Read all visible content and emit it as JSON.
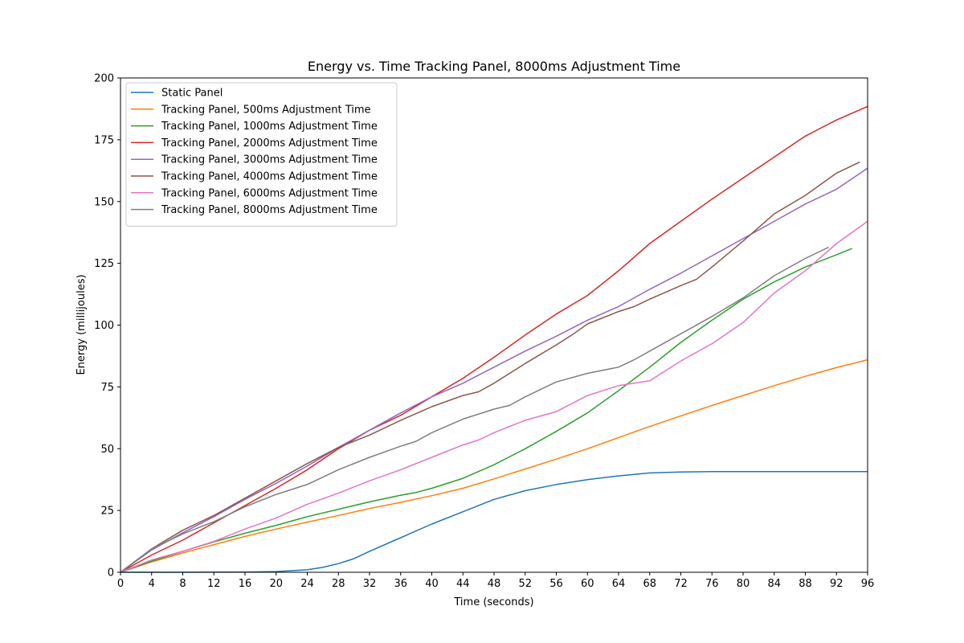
{
  "chart_data": {
    "type": "line",
    "title": "Energy vs. Time Tracking Panel, 8000ms Adjustment Time",
    "xlabel": "Time (seconds)",
    "ylabel": "Energy (millijoules)",
    "xlim": [
      0,
      96
    ],
    "ylim": [
      0,
      200
    ],
    "xticks": [
      "0",
      "4",
      "8",
      "12",
      "16",
      "20",
      "24",
      "28",
      "32",
      "36",
      "40",
      "44",
      "48",
      "52",
      "56",
      "60",
      "64",
      "68",
      "72",
      "76",
      "80",
      "84",
      "88",
      "92",
      "96"
    ],
    "yticks": [
      "0",
      "25",
      "50",
      "75",
      "100",
      "125",
      "150",
      "175",
      "200"
    ],
    "grid": false,
    "legend_position": "upper-left",
    "series": [
      {
        "name": "Static Panel",
        "color": "#1f77b4",
        "x": [
          0,
          8,
          16,
          20,
          24,
          26,
          28,
          30,
          32,
          36,
          40,
          44,
          48,
          52,
          56,
          60,
          64,
          68,
          72,
          76,
          80,
          88,
          96
        ],
        "y": [
          0,
          0,
          0.1,
          0.3,
          1,
          2,
          3.5,
          5.5,
          8.5,
          14,
          19.5,
          24.5,
          29.5,
          33,
          35.5,
          37.5,
          39,
          40.2,
          40.6,
          40.7,
          40.7,
          40.7,
          40.7
        ]
      },
      {
        "name": "Tracking Panel, 500ms Adjustment Time",
        "color": "#ff7f0e",
        "x": [
          0,
          4,
          8,
          12,
          16,
          20,
          24,
          28,
          32,
          36,
          40,
          44,
          48,
          52,
          56,
          60,
          64,
          68,
          72,
          76,
          80,
          84,
          88,
          92,
          96
        ],
        "y": [
          0,
          4.2,
          7.8,
          11.2,
          14.5,
          17.5,
          20.3,
          23,
          25.8,
          28.3,
          31,
          34,
          37.8,
          41.8,
          45.8,
          50,
          54.5,
          59,
          63.3,
          67.5,
          71.5,
          75.5,
          79.3,
          82.8,
          86
        ]
      },
      {
        "name": "Tracking Panel, 1000ms Adjustment Time",
        "color": "#2ca02c",
        "x": [
          0,
          4,
          8,
          12,
          16,
          20,
          24,
          28,
          32,
          36,
          38,
          40,
          44,
          48,
          52,
          56,
          60,
          64,
          68,
          72,
          76,
          80,
          84,
          88,
          92,
          94
        ],
        "y": [
          0,
          4.5,
          8.5,
          12.3,
          15.8,
          19,
          22.5,
          25.5,
          28.5,
          31.2,
          32.3,
          34,
          38,
          43.5,
          50,
          57,
          64.5,
          73.5,
          83,
          93,
          102,
          110.5,
          117.5,
          123.5,
          128.5,
          131
        ]
      },
      {
        "name": "Tracking Panel, 2000ms Adjustment Time",
        "color": "#d62728",
        "x": [
          0,
          4,
          8,
          12,
          16,
          20,
          24,
          28,
          32,
          36,
          40,
          44,
          48,
          52,
          56,
          60,
          64,
          68,
          72,
          76,
          80,
          84,
          88,
          92,
          96
        ],
        "y": [
          0,
          7,
          13,
          20,
          27,
          34,
          41.5,
          50,
          57.5,
          63.5,
          71,
          78.5,
          87,
          96,
          104.5,
          112,
          122,
          133,
          142,
          151,
          159.5,
          168,
          176.5,
          183,
          188.5
        ]
      },
      {
        "name": "Tracking Panel, 3000ms Adjustment Time",
        "color": "#9467bd",
        "x": [
          0,
          4,
          8,
          12,
          16,
          20,
          24,
          28,
          32,
          36,
          40,
          44,
          48,
          52,
          56,
          60,
          64,
          68,
          72,
          76,
          80,
          84,
          88,
          92,
          96
        ],
        "y": [
          0,
          9,
          16,
          22.5,
          29.5,
          36,
          43,
          50.5,
          57.5,
          64.5,
          71,
          76.5,
          83,
          89.5,
          95.5,
          102,
          107.5,
          114.5,
          121,
          128,
          135,
          142,
          149,
          155,
          163.5
        ]
      },
      {
        "name": "Tracking Panel, 4000ms Adjustment Time",
        "color": "#8c564b",
        "x": [
          0,
          4,
          8,
          12,
          16,
          20,
          24,
          28,
          32,
          36,
          40,
          44,
          46,
          48,
          52,
          56,
          58,
          60,
          64,
          66,
          68,
          72,
          74,
          76,
          80,
          84,
          88,
          92,
          95
        ],
        "y": [
          0,
          9.5,
          17,
          23,
          30,
          37,
          44,
          50.5,
          55.5,
          61.5,
          67,
          71.5,
          73,
          76.5,
          84.5,
          92,
          96,
          100.5,
          105.5,
          107.5,
          110.5,
          116,
          118.5,
          123.5,
          134,
          145,
          152.5,
          161.5,
          166
        ]
      },
      {
        "name": "Tracking Panel, 6000ms Adjustment Time",
        "color": "#e377c2",
        "x": [
          0,
          4,
          8,
          12,
          16,
          20,
          24,
          28,
          32,
          36,
          40,
          44,
          46,
          48,
          52,
          56,
          60,
          64,
          66,
          68,
          72,
          76,
          80,
          84,
          88,
          92,
          96
        ],
        "y": [
          0,
          5,
          8.5,
          12.5,
          17.5,
          22,
          27.5,
          32,
          37,
          41.5,
          46.5,
          51.5,
          53.5,
          56.5,
          61.5,
          65,
          71.5,
          75.5,
          76.5,
          77.5,
          85.5,
          92.5,
          101,
          113,
          122,
          133,
          142
        ]
      },
      {
        "name": "Tracking Panel, 8000ms Adjustment Time",
        "color": "#7f7f7f",
        "x": [
          0,
          4,
          8,
          12,
          16,
          20,
          24,
          28,
          32,
          36,
          38,
          40,
          44,
          48,
          50,
          52,
          56,
          60,
          64,
          66,
          68,
          72,
          76,
          80,
          84,
          88,
          91
        ],
        "y": [
          0,
          9.5,
          15.5,
          20.5,
          26.5,
          31.5,
          35.5,
          41.5,
          46.5,
          51,
          53,
          56.5,
          62,
          66,
          67.5,
          71,
          77,
          80.5,
          83,
          86,
          89.5,
          96.5,
          103.5,
          111,
          120,
          127,
          131.5
        ]
      }
    ]
  }
}
